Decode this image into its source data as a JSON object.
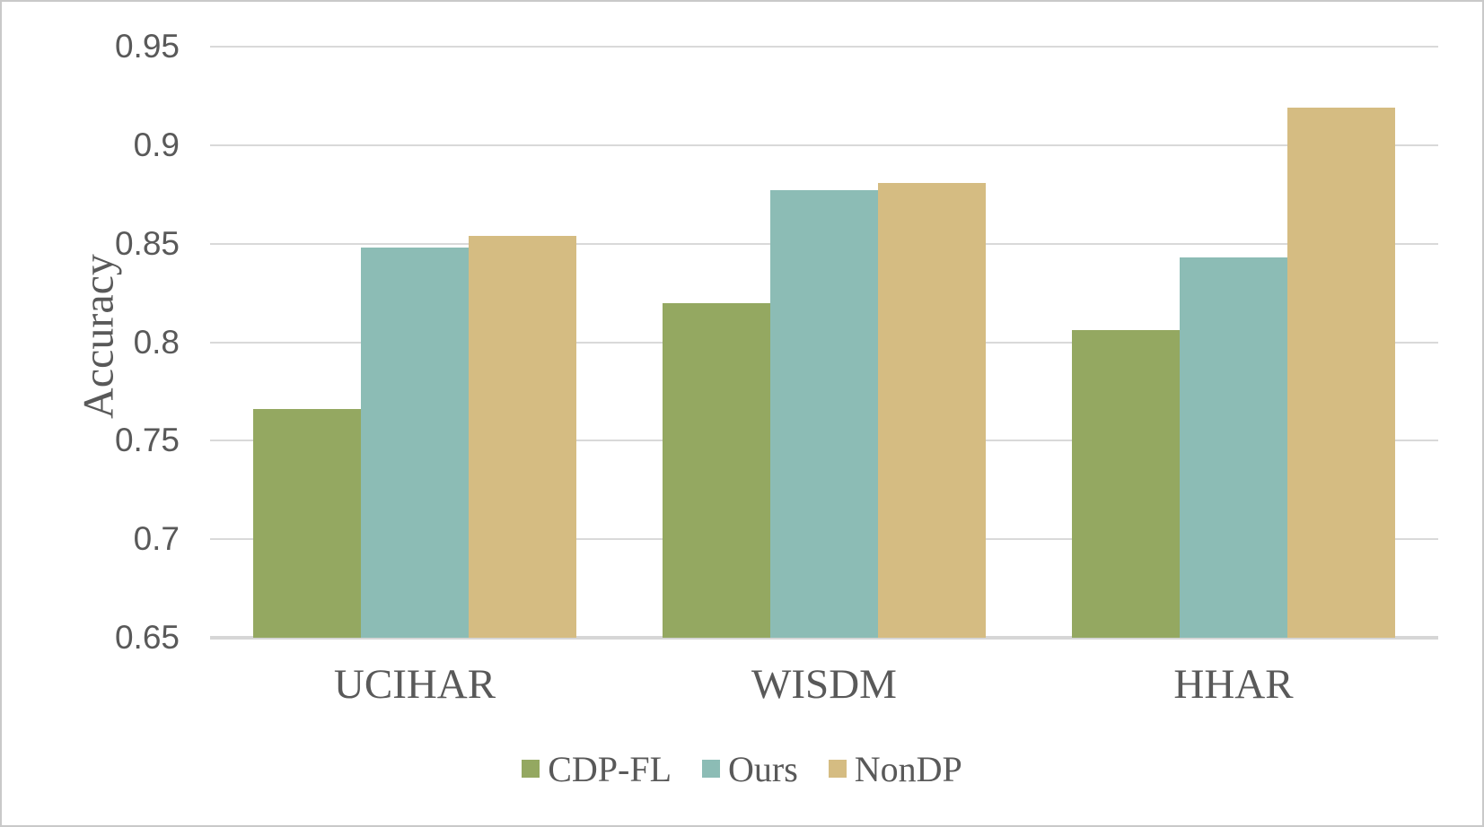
{
  "figure": {
    "background_color": "#ffffff",
    "border_color": "#c9c9c9",
    "text_color": "#595959",
    "gridline_color": "#d9d9d9"
  },
  "chart_data": {
    "type": "bar",
    "title": "",
    "xlabel": "",
    "ylabel": "Accuracy",
    "categories": [
      "UCIHAR",
      "WISDM",
      "HHAR"
    ],
    "series": [
      {
        "name": "CDP-FL",
        "color": "#94a861",
        "values": [
          0.766,
          0.82,
          0.806
        ]
      },
      {
        "name": "Ours",
        "color": "#8cbcb5",
        "values": [
          0.848,
          0.877,
          0.843
        ]
      },
      {
        "name": "NonDP",
        "color": "#d5bc82",
        "values": [
          0.854,
          0.881,
          0.919
        ]
      }
    ],
    "ylim": [
      0.65,
      0.95
    ],
    "yticks": [
      {
        "value": 0.65,
        "label": "0.65"
      },
      {
        "value": 0.7,
        "label": "0.7"
      },
      {
        "value": 0.75,
        "label": "0.75"
      },
      {
        "value": 0.8,
        "label": "0.8"
      },
      {
        "value": 0.85,
        "label": "0.85"
      },
      {
        "value": 0.9,
        "label": "0.9"
      },
      {
        "value": 0.95,
        "label": "0.95"
      }
    ],
    "grid": "horizontal",
    "legend_position": "bottom"
  }
}
